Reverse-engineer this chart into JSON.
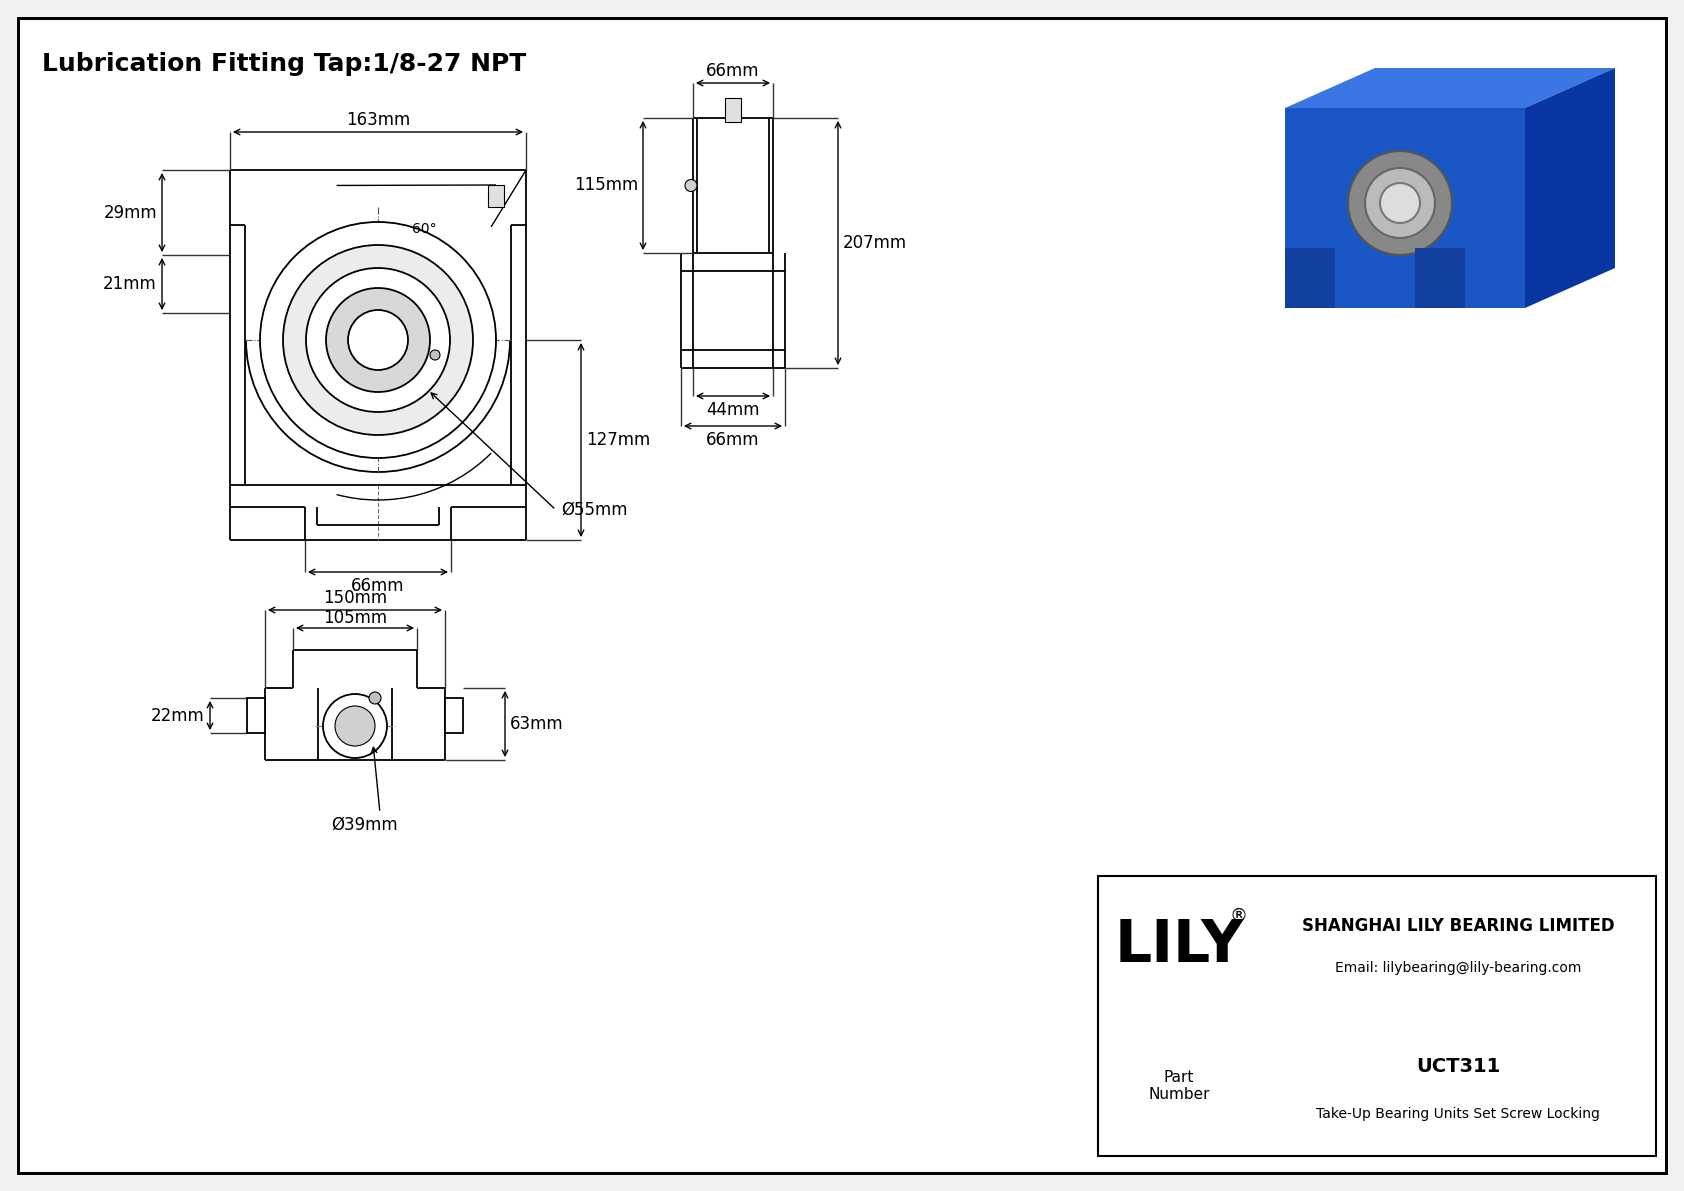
{
  "title": "Lubrication Fitting Tap:1/8-27 NPT",
  "bg_color": "#f2f2f2",
  "line_color": "#000000",
  "company": "SHANGHAI LILY BEARING LIMITED",
  "email": "Email: lilybearing@lily-bearing.com",
  "part_label": "Part\nNumber",
  "part_number": "UCT311",
  "part_desc": "Take-Up Bearing Units Set Screw Locking",
  "dims": {
    "front_163mm": "163mm",
    "front_29mm": "29mm",
    "front_21mm": "21mm",
    "front_66mm": "66mm",
    "front_127mm": "127mm",
    "front_55mm": "Ø55mm",
    "front_60deg": "60°",
    "side_66mm_top": "66mm",
    "side_115mm": "115mm",
    "side_44mm": "44mm",
    "side_66mm_bot": "66mm",
    "side_207mm": "207mm",
    "bot_150mm": "150mm",
    "bot_105mm": "105mm",
    "bot_22mm": "22mm",
    "bot_63mm": "63mm",
    "bot_39mm": "Ø39mm"
  }
}
